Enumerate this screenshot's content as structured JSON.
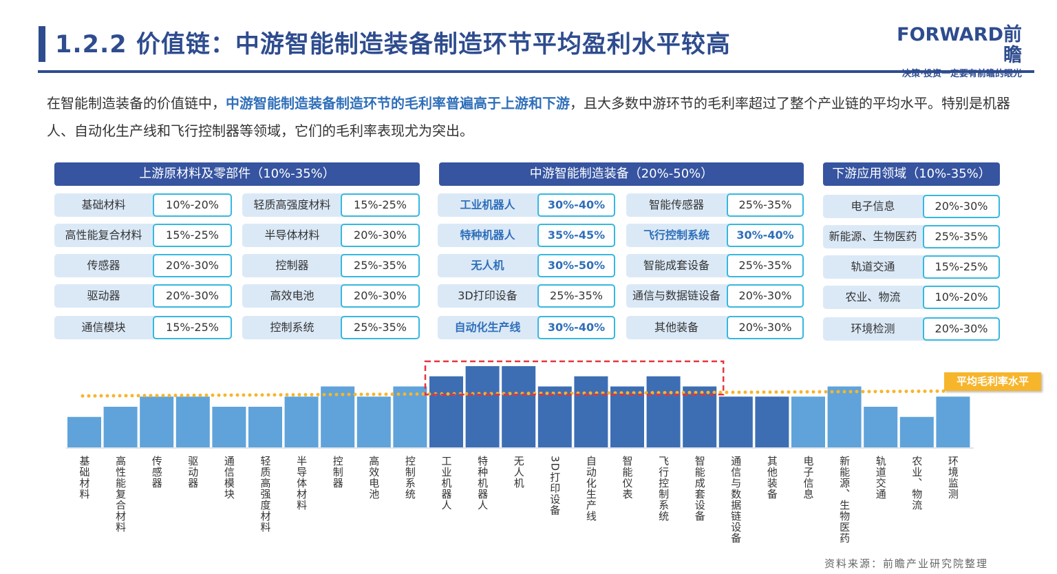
{
  "header": {
    "title": "1.2.2 价值链：中游智能制造装备制造环节平均盈利水平较高",
    "logo_text": "FORWARD前瞻",
    "logo_slogan": "决策·投资一定要有前瞻的眼光"
  },
  "intro": {
    "part1": "在智能制造装备的价值链中，",
    "highlight": "中游智能制造装备制造环节的毛利率普遍高于上游和下游",
    "part2": "，且大多数中游环节的毛利率超过了整个产业链的平均水平。特别是机器人、自动化生产线和飞行控制器等领域，它们的毛利率表现尤为突出。"
  },
  "upstream": {
    "title": "上游原材料及零部件（10%-35%）",
    "items": [
      {
        "label": "基础材料",
        "value": "10%-20%"
      },
      {
        "label": "轻质高强度材料",
        "value": "15%-25%"
      },
      {
        "label": "高性能复合材料",
        "value": "15%-25%"
      },
      {
        "label": "半导体材料",
        "value": "20%-30%"
      },
      {
        "label": "传感器",
        "value": "20%-30%"
      },
      {
        "label": "控制器",
        "value": "25%-35%"
      },
      {
        "label": "驱动器",
        "value": "20%-30%"
      },
      {
        "label": "高效电池",
        "value": "20%-30%"
      },
      {
        "label": "通信模块",
        "value": "15%-25%"
      },
      {
        "label": "控制系统",
        "value": "25%-35%"
      }
    ]
  },
  "midstream": {
    "title": "中游智能制造装备（20%-50%）",
    "items": [
      {
        "label": "工业机器人",
        "value": "30%-40%",
        "highlight": true
      },
      {
        "label": "智能传感器",
        "value": "25%-35%",
        "highlight": false
      },
      {
        "label": "特种机器人",
        "value": "35%-45%",
        "highlight": true
      },
      {
        "label": "飞行控制系统",
        "value": "30%-40%",
        "highlight": true
      },
      {
        "label": "无人机",
        "value": "30%-50%",
        "highlight": true
      },
      {
        "label": "智能成套设备",
        "value": "25%-35%",
        "highlight": false
      },
      {
        "label": "3D打印设备",
        "value": "25%-35%",
        "highlight": false
      },
      {
        "label": "通信与数据链设备",
        "value": "20%-30%",
        "highlight": false
      },
      {
        "label": "自动化生产线",
        "value": "30%-40%",
        "highlight": true
      },
      {
        "label": "其他装备",
        "value": "20%-30%",
        "highlight": false
      }
    ]
  },
  "downstream": {
    "title": "下游应用领域（10%-35%）",
    "items": [
      {
        "label": "电子信息",
        "value": "20%-30%"
      },
      {
        "label": "新能源、生物医药",
        "value": "25%-35%"
      },
      {
        "label": "轨道交通",
        "value": "15%-25%"
      },
      {
        "label": "农业、物流",
        "value": "10%-20%"
      },
      {
        "label": "环境检测",
        "value": "20%-30%"
      }
    ]
  },
  "chart_data": {
    "type": "bar",
    "categories": [
      "基础材料",
      "高性能复合材料",
      "传感器",
      "驱动器",
      "通信模块",
      "轻质高强度材料",
      "半导体材料",
      "控制器",
      "高效电池",
      "控制系统",
      "工业机器人",
      "特种机器人",
      "无人机",
      "3D打印设备",
      "自动化生产线",
      "智能仪表",
      "飞行控制系统",
      "智能成套设备",
      "通信与数据链设备",
      "其他装备",
      "电子信息",
      "新能源、生物医药",
      "轨道交通",
      "农业、物流",
      "环境监测"
    ],
    "values": [
      15,
      20,
      25,
      25,
      20,
      20,
      25,
      30,
      25,
      30,
      35,
      40,
      40,
      30,
      35,
      30,
      35,
      30,
      25,
      25,
      25,
      30,
      20,
      15,
      25
    ],
    "segment": [
      "up",
      "up",
      "up",
      "up",
      "up",
      "up",
      "up",
      "up",
      "up",
      "up",
      "mid",
      "mid",
      "mid",
      "mid",
      "mid",
      "mid",
      "mid",
      "mid",
      "mid",
      "mid",
      "down",
      "down",
      "down",
      "down",
      "down"
    ],
    "average": {
      "label": "平均毛利率水平",
      "value": 26
    },
    "highlighted_range": [
      "工业机器人",
      "智能成套设备"
    ],
    "colors": {
      "upstream_downstream": "#5fa3da",
      "midstream": "#3d6eb4",
      "average_line": "#f7b52c",
      "highlight_box": "#e8333a"
    },
    "axes_visible": false,
    "grid": false
  },
  "source": "资料来源：前瞻产业研究院整理"
}
